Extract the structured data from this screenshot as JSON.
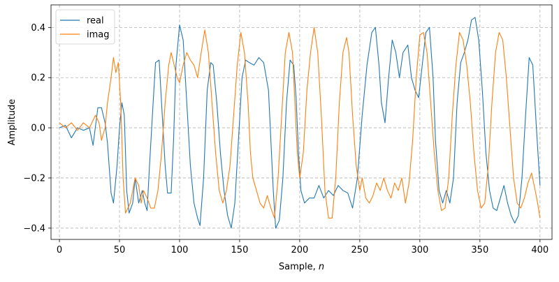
{
  "chart_data": {
    "type": "line",
    "title": "",
    "xlabel": "Sample, n",
    "xlabel_main": "Sample, ",
    "xlabel_var": "n",
    "ylabel": "Amplitude",
    "xlim": [
      -7,
      410
    ],
    "ylim": [
      -0.445,
      0.49
    ],
    "x_ticks": [
      0,
      50,
      100,
      150,
      200,
      250,
      300,
      350,
      400
    ],
    "y_ticks": [
      -0.4,
      -0.2,
      0.0,
      0.2,
      0.4
    ],
    "y_tick_labels": [
      "−0.4",
      "−0.2",
      "0.0",
      "0.2",
      "0.4"
    ],
    "grid": true,
    "legend_position": "top-left",
    "series": [
      {
        "name": "real",
        "color": "#1f77b4",
        "points": [
          [
            0,
            0.0
          ],
          [
            5,
            0.01
          ],
          [
            10,
            -0.04
          ],
          [
            15,
            0.0
          ],
          [
            20,
            -0.01
          ],
          [
            25,
            0.0
          ],
          [
            28,
            -0.07
          ],
          [
            32,
            0.08
          ],
          [
            35,
            0.08
          ],
          [
            38,
            0.02
          ],
          [
            40,
            -0.06
          ],
          [
            43,
            -0.26
          ],
          [
            45,
            -0.3
          ],
          [
            48,
            -0.15
          ],
          [
            50,
            0.0
          ],
          [
            52,
            0.1
          ],
          [
            54,
            0.05
          ],
          [
            56,
            -0.25
          ],
          [
            58,
            -0.34
          ],
          [
            61,
            -0.3
          ],
          [
            63,
            -0.2
          ],
          [
            66,
            -0.3
          ],
          [
            69,
            -0.25
          ],
          [
            71,
            -0.3
          ],
          [
            73,
            -0.33
          ],
          [
            75,
            -0.15
          ],
          [
            78,
            0.1
          ],
          [
            80,
            0.26
          ],
          [
            83,
            0.27
          ],
          [
            85,
            0.1
          ],
          [
            88,
            -0.15
          ],
          [
            90,
            -0.26
          ],
          [
            93,
            -0.26
          ],
          [
            95,
            -0.05
          ],
          [
            97,
            0.25
          ],
          [
            100,
            0.41
          ],
          [
            103,
            0.35
          ],
          [
            106,
            0.1
          ],
          [
            109,
            -0.15
          ],
          [
            112,
            -0.3
          ],
          [
            115,
            -0.36
          ],
          [
            117,
            -0.39
          ],
          [
            120,
            -0.2
          ],
          [
            123,
            0.15
          ],
          [
            126,
            0.26
          ],
          [
            128,
            0.25
          ],
          [
            131,
            0.1
          ],
          [
            134,
            -0.1
          ],
          [
            137,
            -0.25
          ],
          [
            140,
            -0.35
          ],
          [
            143,
            -0.4
          ],
          [
            146,
            -0.3
          ],
          [
            149,
            -0.05
          ],
          [
            152,
            0.2
          ],
          [
            155,
            0.27
          ],
          [
            158,
            0.26
          ],
          [
            162,
            0.25
          ],
          [
            166,
            0.28
          ],
          [
            170,
            0.26
          ],
          [
            174,
            0.15
          ],
          [
            176,
            -0.05
          ],
          [
            178,
            -0.25
          ],
          [
            180,
            -0.4
          ],
          [
            183,
            -0.37
          ],
          [
            186,
            -0.2
          ],
          [
            189,
            0.1
          ],
          [
            192,
            0.27
          ],
          [
            195,
            0.25
          ],
          [
            197,
            0.12
          ],
          [
            199,
            -0.1
          ],
          [
            201,
            -0.25
          ],
          [
            204,
            -0.3
          ],
          [
            208,
            -0.28
          ],
          [
            212,
            -0.28
          ],
          [
            216,
            -0.23
          ],
          [
            220,
            -0.28
          ],
          [
            224,
            -0.25
          ],
          [
            228,
            -0.27
          ],
          [
            232,
            -0.23
          ],
          [
            236,
            -0.25
          ],
          [
            240,
            -0.26
          ],
          [
            244,
            -0.32
          ],
          [
            248,
            -0.2
          ],
          [
            252,
            0.05
          ],
          [
            256,
            0.25
          ],
          [
            260,
            0.38
          ],
          [
            263,
            0.4
          ],
          [
            266,
            0.25
          ],
          [
            268,
            0.1
          ],
          [
            271,
            0.02
          ],
          [
            274,
            0.2
          ],
          [
            277,
            0.35
          ],
          [
            280,
            0.3
          ],
          [
            283,
            0.2
          ],
          [
            286,
            0.3
          ],
          [
            290,
            0.33
          ],
          [
            293,
            0.2
          ],
          [
            296,
            0.15
          ],
          [
            299,
            0.12
          ],
          [
            302,
            0.25
          ],
          [
            305,
            0.38
          ],
          [
            308,
            0.4
          ],
          [
            311,
            0.2
          ],
          [
            313,
            -0.05
          ],
          [
            316,
            -0.25
          ],
          [
            319,
            -0.3
          ],
          [
            322,
            -0.25
          ],
          [
            325,
            -0.3
          ],
          [
            328,
            -0.2
          ],
          [
            331,
            0.1
          ],
          [
            334,
            0.26
          ],
          [
            337,
            0.3
          ],
          [
            340,
            0.35
          ],
          [
            343,
            0.43
          ],
          [
            346,
            0.44
          ],
          [
            349,
            0.35
          ],
          [
            352,
            0.15
          ],
          [
            355,
            -0.1
          ],
          [
            358,
            -0.25
          ],
          [
            361,
            -0.32
          ],
          [
            364,
            -0.33
          ],
          [
            367,
            -0.28
          ],
          [
            370,
            -0.23
          ],
          [
            373,
            -0.3
          ],
          [
            376,
            -0.35
          ],
          [
            379,
            -0.38
          ],
          [
            382,
            -0.35
          ],
          [
            385,
            -0.2
          ],
          [
            388,
            0.05
          ],
          [
            391,
            0.28
          ],
          [
            394,
            0.25
          ],
          [
            397,
            0.0
          ],
          [
            400,
            -0.23
          ]
        ]
      },
      {
        "name": "imag",
        "color": "#ff7f0e",
        "points": [
          [
            0,
            0.02
          ],
          [
            5,
            0.0
          ],
          [
            10,
            0.02
          ],
          [
            15,
            -0.01
          ],
          [
            20,
            0.02
          ],
          [
            25,
            0.0
          ],
          [
            30,
            0.05
          ],
          [
            33,
            0.02
          ],
          [
            35,
            -0.05
          ],
          [
            38,
            0.0
          ],
          [
            40,
            0.1
          ],
          [
            43,
            0.2
          ],
          [
            45,
            0.28
          ],
          [
            47,
            0.22
          ],
          [
            49,
            0.26
          ],
          [
            51,
            0.1
          ],
          [
            53,
            -0.2
          ],
          [
            55,
            -0.34
          ],
          [
            57,
            -0.32
          ],
          [
            59,
            -0.3
          ],
          [
            61,
            -0.25
          ],
          [
            63,
            -0.2
          ],
          [
            66,
            -0.23
          ],
          [
            68,
            -0.3
          ],
          [
            70,
            -0.25
          ],
          [
            73,
            -0.28
          ],
          [
            76,
            -0.32
          ],
          [
            79,
            -0.32
          ],
          [
            82,
            -0.25
          ],
          [
            85,
            -0.1
          ],
          [
            88,
            0.1
          ],
          [
            91,
            0.25
          ],
          [
            93,
            0.3
          ],
          [
            95,
            0.26
          ],
          [
            98,
            0.2
          ],
          [
            100,
            0.18
          ],
          [
            103,
            0.25
          ],
          [
            106,
            0.3
          ],
          [
            109,
            0.27
          ],
          [
            112,
            0.25
          ],
          [
            115,
            0.2
          ],
          [
            118,
            0.3
          ],
          [
            121,
            0.39
          ],
          [
            124,
            0.3
          ],
          [
            127,
            0.1
          ],
          [
            130,
            -0.1
          ],
          [
            133,
            -0.25
          ],
          [
            136,
            -0.3
          ],
          [
            139,
            -0.25
          ],
          [
            142,
            -0.15
          ],
          [
            145,
            0.05
          ],
          [
            148,
            0.25
          ],
          [
            151,
            0.38
          ],
          [
            154,
            0.3
          ],
          [
            157,
            0.1
          ],
          [
            159,
            -0.1
          ],
          [
            161,
            -0.2
          ],
          [
            164,
            -0.25
          ],
          [
            167,
            -0.3
          ],
          [
            170,
            -0.32
          ],
          [
            173,
            -0.27
          ],
          [
            176,
            -0.32
          ],
          [
            179,
            -0.36
          ],
          [
            182,
            -0.2
          ],
          [
            185,
            0.05
          ],
          [
            188,
            0.3
          ],
          [
            191,
            0.38
          ],
          [
            194,
            0.3
          ],
          [
            196,
            0.1
          ],
          [
            198,
            -0.1
          ],
          [
            200,
            -0.2
          ],
          [
            203,
            -0.1
          ],
          [
            206,
            0.15
          ],
          [
            209,
            0.3
          ],
          [
            212,
            0.4
          ],
          [
            215,
            0.3
          ],
          [
            218,
            0.05
          ],
          [
            221,
            -0.25
          ],
          [
            224,
            -0.36
          ],
          [
            227,
            -0.36
          ],
          [
            230,
            -0.2
          ],
          [
            233,
            0.1
          ],
          [
            236,
            0.3
          ],
          [
            239,
            0.36
          ],
          [
            241,
            0.3
          ],
          [
            244,
            0.05
          ],
          [
            247,
            -0.15
          ],
          [
            250,
            -0.25
          ],
          [
            252,
            -0.2
          ],
          [
            255,
            -0.28
          ],
          [
            258,
            -0.3
          ],
          [
            261,
            -0.27
          ],
          [
            264,
            -0.22
          ],
          [
            267,
            -0.25
          ],
          [
            270,
            -0.2
          ],
          [
            273,
            -0.25
          ],
          [
            276,
            -0.28
          ],
          [
            279,
            -0.22
          ],
          [
            282,
            -0.25
          ],
          [
            285,
            -0.2
          ],
          [
            288,
            -0.3
          ],
          [
            291,
            -0.22
          ],
          [
            294,
            -0.05
          ],
          [
            297,
            0.2
          ],
          [
            300,
            0.37
          ],
          [
            303,
            0.38
          ],
          [
            306,
            0.3
          ],
          [
            309,
            0.1
          ],
          [
            312,
            -0.1
          ],
          [
            315,
            -0.25
          ],
          [
            318,
            -0.33
          ],
          [
            321,
            -0.32
          ],
          [
            324,
            -0.2
          ],
          [
            327,
            0.05
          ],
          [
            330,
            0.25
          ],
          [
            333,
            0.38
          ],
          [
            336,
            0.35
          ],
          [
            339,
            0.25
          ],
          [
            342,
            0.1
          ],
          [
            345,
            -0.1
          ],
          [
            348,
            -0.25
          ],
          [
            351,
            -0.32
          ],
          [
            354,
            -0.3
          ],
          [
            357,
            -0.15
          ],
          [
            360,
            0.1
          ],
          [
            363,
            0.3
          ],
          [
            366,
            0.38
          ],
          [
            369,
            0.35
          ],
          [
            372,
            0.2
          ],
          [
            375,
            0.0
          ],
          [
            378,
            -0.2
          ],
          [
            381,
            -0.3
          ],
          [
            384,
            -0.32
          ],
          [
            387,
            -0.28
          ],
          [
            390,
            -0.22
          ],
          [
            393,
            -0.18
          ],
          [
            396,
            -0.25
          ],
          [
            398,
            -0.3
          ],
          [
            400,
            -0.36
          ]
        ]
      }
    ]
  }
}
